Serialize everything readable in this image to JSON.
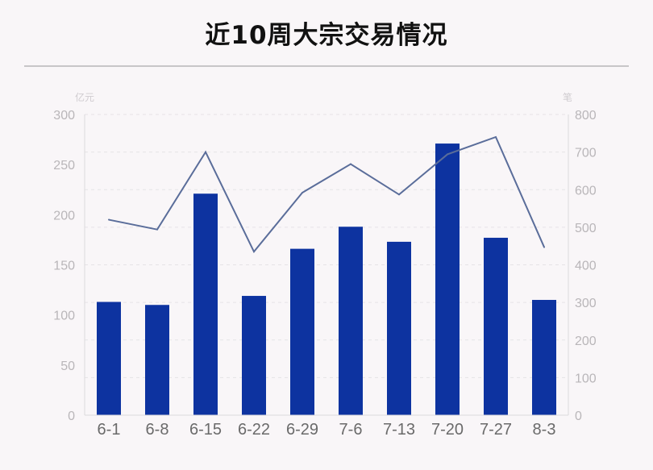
{
  "title": "近10周大宗交易情况",
  "chart_data": {
    "type": "bar",
    "title": "近10周大宗交易情况",
    "categories": [
      "6-1",
      "6-8",
      "6-15",
      "6-22",
      "6-29",
      "7-6",
      "7-13",
      "7-20",
      "7-27",
      "8-3"
    ],
    "series": [
      {
        "type": "bar",
        "axis": "left",
        "color": "#0d33a0",
        "values": [
          113,
          110,
          221,
          119,
          166,
          188,
          173,
          271,
          177,
          115
        ]
      },
      {
        "type": "line",
        "axis": "right",
        "color": "#5a6d9a",
        "values": [
          520,
          494,
          700,
          435,
          592,
          668,
          587,
          694,
          740,
          447
        ]
      }
    ],
    "y_left": {
      "unit": "亿元",
      "ylim": [
        0,
        300
      ],
      "ticks": [
        0,
        50,
        100,
        150,
        200,
        250,
        300
      ]
    },
    "y_right": {
      "unit": "笔",
      "ylim": [
        0,
        800
      ],
      "ticks": [
        0,
        100,
        200,
        300,
        400,
        500,
        600,
        700,
        800
      ]
    },
    "grid": true,
    "legend": "none"
  }
}
